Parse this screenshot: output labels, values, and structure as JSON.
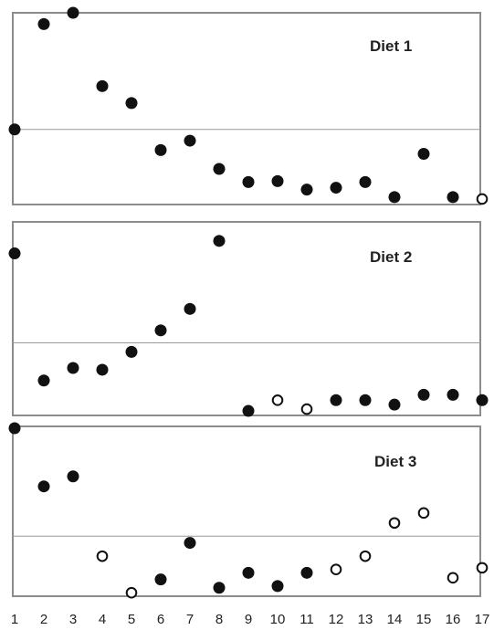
{
  "chart_data": {
    "type": "scatter",
    "x_tick_labels": [
      "1",
      "2",
      "3",
      "4",
      "5",
      "6",
      "7",
      "8",
      "9",
      "10",
      "11",
      "12",
      "13",
      "14",
      "15",
      "16",
      "17"
    ],
    "xlim": [
      1,
      17
    ],
    "ylim": [
      0,
      1
    ],
    "grid": false,
    "legend": "none",
    "colors": {
      "filled": "#111111",
      "open_fill": "#ffffff",
      "frame": "#8c8c8c",
      "reference_line": "#9a9a9a"
    },
    "marker_encoding": {
      "filled": "filled circle",
      "open": "open circle"
    },
    "panels": [
      {
        "title": "Diet 1",
        "reference_level": 0.38,
        "points": [
          {
            "x": 1,
            "y": 0.38,
            "filled": true
          },
          {
            "x": 2,
            "y": 0.94,
            "filled": true
          },
          {
            "x": 3,
            "y": 1.0,
            "filled": true
          },
          {
            "x": 4,
            "y": 0.61,
            "filled": true
          },
          {
            "x": 5,
            "y": 0.52,
            "filled": true
          },
          {
            "x": 6,
            "y": 0.27,
            "filled": true
          },
          {
            "x": 7,
            "y": 0.32,
            "filled": true
          },
          {
            "x": 8,
            "y": 0.17,
            "filled": true
          },
          {
            "x": 9,
            "y": 0.1,
            "filled": true
          },
          {
            "x": 10,
            "y": 0.105,
            "filled": true
          },
          {
            "x": 11,
            "y": 0.06,
            "filled": true
          },
          {
            "x": 12,
            "y": 0.07,
            "filled": true
          },
          {
            "x": 13,
            "y": 0.1,
            "filled": true
          },
          {
            "x": 14,
            "y": 0.02,
            "filled": true
          },
          {
            "x": 15,
            "y": 0.25,
            "filled": true
          },
          {
            "x": 16,
            "y": 0.02,
            "filled": true
          },
          {
            "x": 17,
            "y": 0.01,
            "filled": false
          }
        ]
      },
      {
        "title": "Diet 2",
        "reference_level": 0.39,
        "points": [
          {
            "x": 1,
            "y": 0.89,
            "filled": true
          },
          {
            "x": 2,
            "y": 0.18,
            "filled": true
          },
          {
            "x": 3,
            "y": 0.25,
            "filled": true
          },
          {
            "x": 4,
            "y": 0.24,
            "filled": true
          },
          {
            "x": 5,
            "y": 0.34,
            "filled": true
          },
          {
            "x": 6,
            "y": 0.46,
            "filled": true
          },
          {
            "x": 7,
            "y": 0.58,
            "filled": true
          },
          {
            "x": 8,
            "y": 0.96,
            "filled": true
          },
          {
            "x": 9,
            "y": 0.01,
            "filled": true
          },
          {
            "x": 10,
            "y": 0.07,
            "filled": false
          },
          {
            "x": 11,
            "y": 0.02,
            "filled": false
          },
          {
            "x": 12,
            "y": 0.07,
            "filled": true
          },
          {
            "x": 13,
            "y": 0.07,
            "filled": true
          },
          {
            "x": 14,
            "y": 0.045,
            "filled": true
          },
          {
            "x": 15,
            "y": 0.1,
            "filled": true
          },
          {
            "x": 16,
            "y": 0.1,
            "filled": true
          },
          {
            "x": 17,
            "y": 0.07,
            "filled": true
          }
        ]
      },
      {
        "title": "Diet 3",
        "reference_level": 0.35,
        "points": [
          {
            "x": 1,
            "y": 1.0,
            "filled": true
          },
          {
            "x": 2,
            "y": 0.65,
            "filled": true
          },
          {
            "x": 3,
            "y": 0.71,
            "filled": true
          },
          {
            "x": 4,
            "y": 0.23,
            "filled": false
          },
          {
            "x": 5,
            "y": 0.01,
            "filled": false
          },
          {
            "x": 6,
            "y": 0.09,
            "filled": true
          },
          {
            "x": 7,
            "y": 0.31,
            "filled": true
          },
          {
            "x": 8,
            "y": 0.04,
            "filled": true
          },
          {
            "x": 9,
            "y": 0.13,
            "filled": true
          },
          {
            "x": 10,
            "y": 0.05,
            "filled": true
          },
          {
            "x": 11,
            "y": 0.13,
            "filled": true
          },
          {
            "x": 12,
            "y": 0.15,
            "filled": false
          },
          {
            "x": 13,
            "y": 0.23,
            "filled": false
          },
          {
            "x": 14,
            "y": 0.43,
            "filled": false
          },
          {
            "x": 15,
            "y": 0.49,
            "filled": false
          },
          {
            "x": 16,
            "y": 0.1,
            "filled": false
          },
          {
            "x": 17,
            "y": 0.16,
            "filled": false
          }
        ]
      }
    ]
  }
}
